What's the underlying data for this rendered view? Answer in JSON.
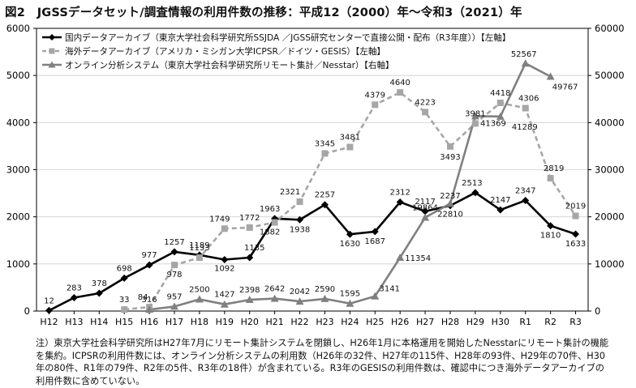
{
  "figure": {
    "title": "図2　JGSSデータセット/調査情報の利用件数の推移：平成12（2000）年～令和3（2021）年",
    "note": [
      "注）東京大学社会科学研究所はH27年7月にリモート集計システムを閉鎖し、H26年1月に本格運用を開始したNesstarにリモート集計の機能",
      "を集約。ICPSRの利用件数には、オンライン分析システムの利用数（H26年の32件、H27年の115件、H28年の93件、H29年の70件、H30",
      "年の80件、R1年の79件、R2年の5件、R3年の18件）が含まれている。R3年のGESISの利用件数は、確認中につき海外データアーカイブの",
      "利用件数に含めていない。"
    ]
  },
  "chart_data": {
    "type": "line",
    "categories": [
      "H12",
      "H13",
      "H14",
      "H15",
      "H16",
      "H17",
      "H18",
      "H19",
      "H20",
      "H21",
      "H22",
      "H23",
      "H24",
      "H25",
      "H26",
      "H27",
      "H28",
      "H29",
      "H30",
      "R1",
      "R2",
      "R3"
    ],
    "y_left": {
      "min": 0,
      "max": 6000,
      "ticks": [
        0,
        1000,
        2000,
        3000,
        4000,
        5000,
        6000
      ]
    },
    "y_right": {
      "min": 0,
      "max": 60000,
      "ticks": [
        0,
        10000,
        20000,
        30000,
        40000,
        50000,
        60000
      ]
    },
    "legend_position": "top-left",
    "series": [
      {
        "name": "国内データアーカイブ（東京大学社会科学研究所SSJDA ／JGSS研究センターで直接公開・配布（R3年度））【左軸】",
        "axis": "left",
        "color": "#000000",
        "style": "solid",
        "marker": "diamond",
        "values": [
          12,
          283,
          378,
          698,
          977,
          1257,
          1189,
          1092,
          1135,
          1963,
          1938,
          2257,
          1630,
          1687,
          2312,
          2117,
          2237,
          2513,
          2147,
          2347,
          1810,
          1633
        ],
        "labels": [
          "12",
          "283",
          "378",
          "698",
          "977",
          "1257",
          "1189",
          "1092",
          "1135",
          "1963",
          "1938",
          "2257",
          "1630",
          "1687",
          "2312",
          "2117",
          "2237",
          "2513",
          "2147",
          "2347",
          "1810",
          "1633"
        ]
      },
      {
        "name": "海外データアーカイブ（アメリカ・ミシガン大学ICPSR／ドイツ・GESIS）【左軸】",
        "axis": "left",
        "color": "#a6a6a6",
        "style": "dashed",
        "marker": "square",
        "values": [
          null,
          null,
          null,
          33,
          84,
          978,
          1133,
          1749,
          1772,
          1882,
          2321,
          3345,
          3481,
          4379,
          4640,
          4223,
          3493,
          3981,
          4418,
          4306,
          2819,
          2019
        ],
        "labels": [
          "",
          "",
          "",
          "33",
          "84",
          "978",
          "1133",
          "1749",
          "1772",
          "1882",
          "2321",
          "3345",
          "3481",
          "4379",
          "4640",
          "4223",
          "3493",
          "3981",
          "4418",
          "4306",
          "2819",
          "2019"
        ]
      },
      {
        "name": "オンライン分析システム（東京大学社会科学研究所リモート集計／Nesstar）【右軸】",
        "axis": "right",
        "color": "#808080",
        "style": "solid",
        "marker": "triangle",
        "values": [
          null,
          null,
          null,
          null,
          316,
          957,
          2500,
          1427,
          2398,
          2642,
          2042,
          2590,
          1595,
          3141,
          11354,
          19864,
          22810,
          41369,
          41289,
          52567,
          49767,
          null
        ],
        "labels": [
          "",
          "",
          "",
          "",
          "316",
          "957",
          "2500",
          "1427",
          "2398",
          "2642",
          "2042",
          "2590",
          "1595",
          "3141",
          "11354",
          "19864",
          "22810",
          "41369",
          "41289",
          "52567",
          "49767",
          ""
        ]
      }
    ]
  }
}
